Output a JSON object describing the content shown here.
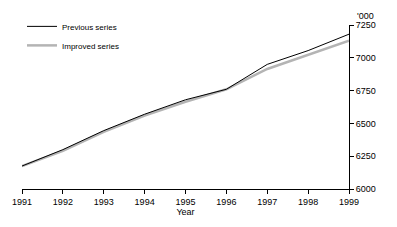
{
  "chart_data": {
    "type": "line",
    "x_label": "Year",
    "y_label": "'000",
    "x": [
      1991,
      1992,
      1993,
      1994,
      1995,
      1996,
      1997,
      1998,
      1999
    ],
    "series": [
      {
        "name": "Previous series",
        "color": "#000000",
        "values": [
          6175,
          6300,
          6445,
          6570,
          6680,
          6760,
          6950,
          7055,
          7180
        ]
      },
      {
        "name": "Improved series",
        "color": "#b4b4b4",
        "values": [
          6175,
          6290,
          6435,
          6560,
          6665,
          6760,
          6915,
          7020,
          7130
        ]
      }
    ],
    "xlim": [
      1991,
      1999
    ],
    "xticks": [
      1991,
      1992,
      1993,
      1994,
      1995,
      1996,
      1997,
      1998,
      1999
    ],
    "ylim": [
      6000,
      7250
    ],
    "yticks": [
      6000,
      6250,
      6500,
      6750,
      7000,
      7250
    ],
    "grid": false,
    "legend": "top-left"
  }
}
